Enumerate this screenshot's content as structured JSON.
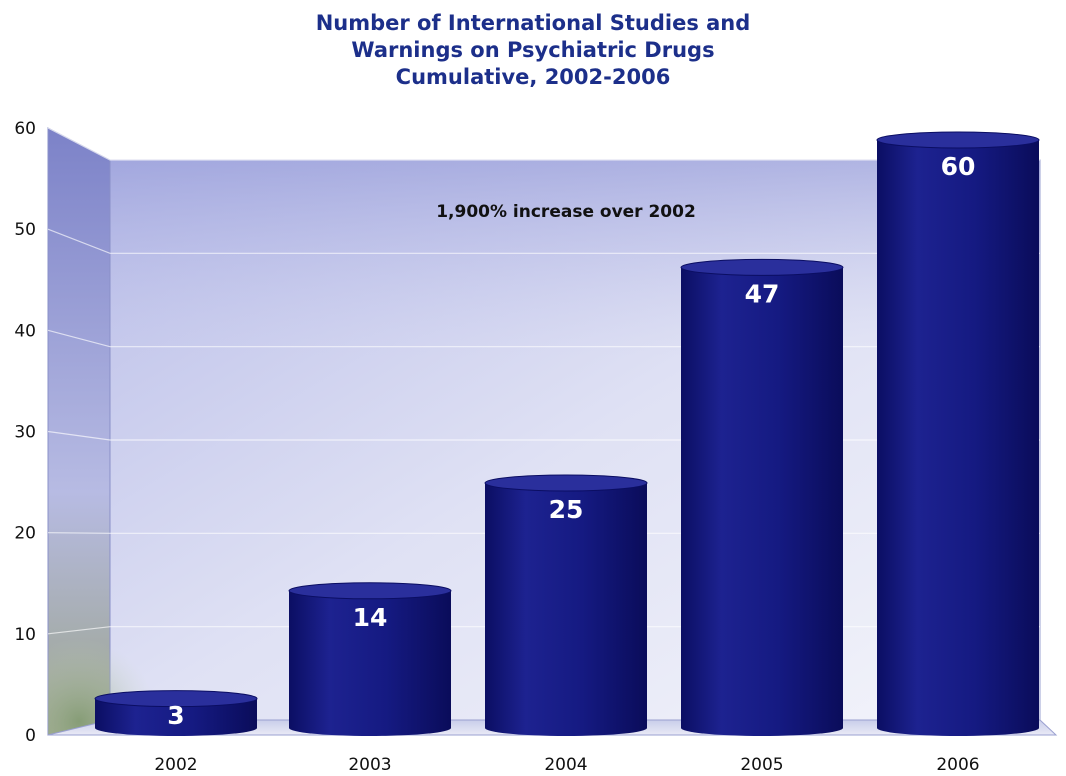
{
  "chart_data": {
    "type": "bar",
    "title_lines": [
      "Number of International Studies and",
      "Warnings on Psychiatric Drugs",
      "Cumulative, 2002-2006"
    ],
    "categories": [
      "2002",
      "2003",
      "2004",
      "2005",
      "2006"
    ],
    "values": [
      3,
      14,
      25,
      47,
      60
    ],
    "value_labels": [
      "3",
      "14",
      "25",
      "47",
      "60"
    ],
    "ylim": [
      0,
      60
    ],
    "yticks": [
      "0",
      "10",
      "20",
      "30",
      "40",
      "50",
      "60"
    ],
    "annotation": "1,900% increase over 2002",
    "grid": true,
    "xlabel": "",
    "ylabel": "",
    "bar_color": "#12157a",
    "title_color": "#1c2f8a"
  }
}
